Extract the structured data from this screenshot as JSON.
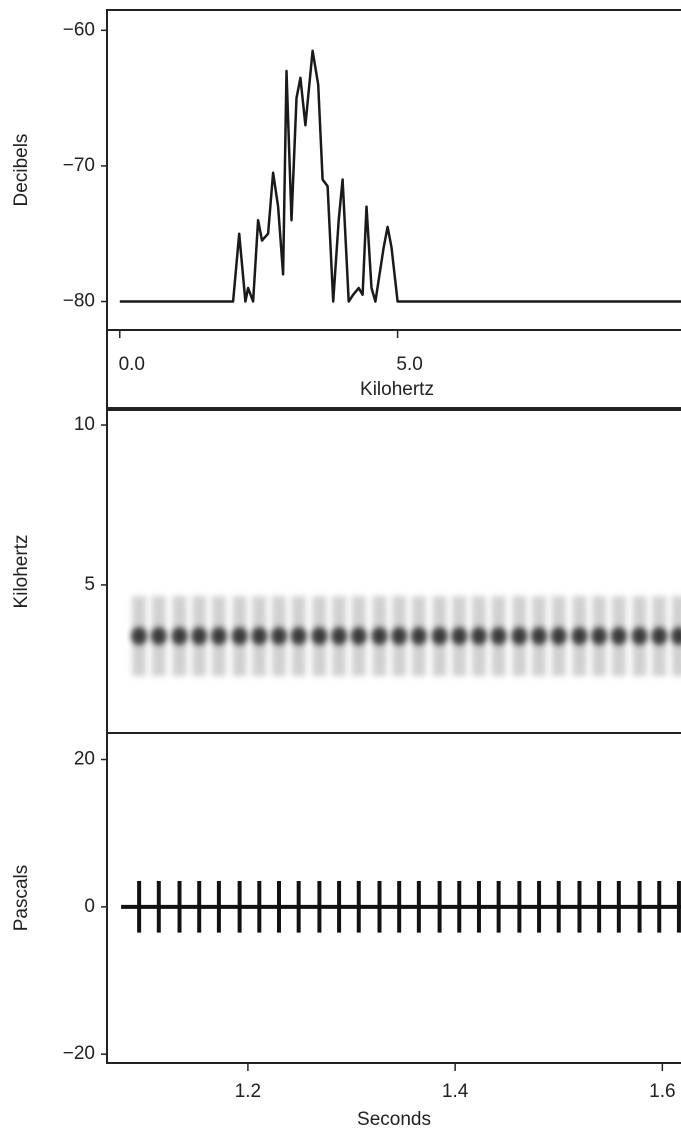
{
  "chart_data": [
    {
      "type": "line",
      "x_label": "Kilohertz",
      "y_label": "Decibels",
      "x": [
        0,
        2.04,
        2.15,
        2.26,
        2.31,
        2.4,
        2.49,
        2.56,
        2.67,
        2.76,
        2.85,
        2.94,
        3.0,
        3.09,
        3.18,
        3.25,
        3.34,
        3.47,
        3.57,
        3.65,
        3.74,
        3.84,
        3.94,
        4.01,
        4.12,
        4.2,
        4.3,
        4.37,
        4.44,
        4.53,
        4.6,
        4.75,
        4.82,
        4.89,
        5.0,
        10.1
      ],
      "values": [
        -80,
        -80,
        -75,
        -80,
        -79,
        -80,
        -74,
        -75.5,
        -75,
        -70.5,
        -73,
        -78,
        -63,
        -74,
        -65,
        -63.5,
        -67,
        -61.5,
        -64,
        -71,
        -71.5,
        -80,
        -74,
        -71,
        -80,
        -79.5,
        -79,
        -79.5,
        -73,
        -79,
        -80,
        -76,
        -74.5,
        -76,
        -80,
        -80
      ],
      "color": "#1a1a1a",
      "xlim": [
        -0.23,
        10.1
      ],
      "ylim": [
        -82.1,
        -58.5
      ],
      "xticks": [
        {
          "value": 0,
          "label": "0.0"
        },
        {
          "value": 5,
          "label": "5.0"
        }
      ],
      "yticks": [
        {
          "value": -60,
          "label": "−60"
        },
        {
          "value": -70,
          "label": "−70"
        },
        {
          "value": -80,
          "label": "−80"
        }
      ]
    },
    {
      "type": "spectrogram",
      "y_label": "Kilohertz",
      "x": [
        1.095,
        1.114,
        1.134,
        1.153,
        1.172,
        1.192,
        1.211,
        1.23,
        1.249,
        1.269,
        1.288,
        1.307,
        1.327,
        1.346,
        1.365,
        1.385,
        1.404,
        1.423,
        1.442,
        1.462,
        1.481,
        1.5,
        1.52,
        1.539,
        1.558,
        1.578,
        1.597,
        1.616
      ],
      "values": [
        3.4,
        3.4,
        3.4,
        3.4,
        3.4,
        3.4,
        3.4,
        3.4,
        3.4,
        3.4,
        3.4,
        3.4,
        3.4,
        3.4,
        3.4,
        3.4,
        3.4,
        3.4,
        3.4,
        3.4,
        3.4,
        3.4,
        3.4,
        3.4,
        3.4,
        3.4,
        3.4,
        3.4
      ],
      "color": "#222222",
      "xlim": [
        1.064,
        1.618
      ],
      "ylim": [
        0.37,
        10.47
      ],
      "yticks": [
        5,
        10
      ]
    },
    {
      "type": "waveform",
      "x_label": "Seconds",
      "y_label": "Pascals",
      "x": [
        1.095,
        1.114,
        1.134,
        1.153,
        1.172,
        1.192,
        1.211,
        1.23,
        1.249,
        1.269,
        1.288,
        1.307,
        1.327,
        1.346,
        1.365,
        1.385,
        1.404,
        1.423,
        1.442,
        1.462,
        1.481,
        1.5,
        1.52,
        1.539,
        1.558,
        1.578,
        1.597,
        1.616
      ],
      "values": [
        3.5,
        3.5,
        3.5,
        3.5,
        3.5,
        3.5,
        3.5,
        3.5,
        3.5,
        3.5,
        3.5,
        3.5,
        3.5,
        3.5,
        3.5,
        3.5,
        3.5,
        3.5,
        3.5,
        3.5,
        3.5,
        3.5,
        3.5,
        3.5,
        3.5,
        3.5,
        3.5,
        3.5
      ],
      "color": "#111111",
      "xlim": [
        1.064,
        1.618
      ],
      "ylim": [
        -21.2,
        23.6
      ],
      "xticks": [
        1.2,
        1.4,
        1.6
      ],
      "yticks": [
        20,
        0,
        {
          "value": -20,
          "label": "−20"
        }
      ]
    }
  ]
}
